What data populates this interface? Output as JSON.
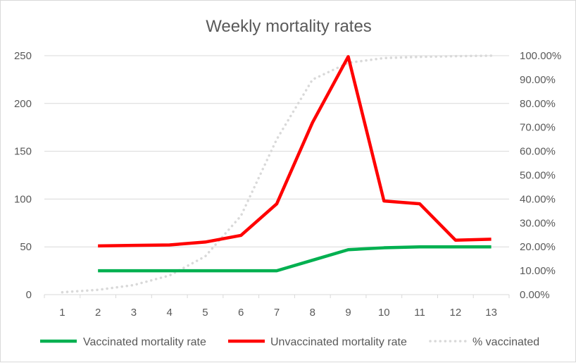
{
  "chart_data": {
    "type": "line",
    "title": "Weekly mortality rates",
    "xlabel": "",
    "ylabel": "",
    "categories": [
      "1",
      "2",
      "3",
      "4",
      "5",
      "6",
      "7",
      "8",
      "9",
      "10",
      "11",
      "12",
      "13"
    ],
    "ylim": [
      0,
      250
    ],
    "y_ticks": [
      "0",
      "50",
      "100",
      "150",
      "200",
      "250"
    ],
    "y2lim": [
      0,
      1
    ],
    "y2_ticks": [
      "0.00%",
      "10.00%",
      "20.00%",
      "30.00%",
      "40.00%",
      "50.00%",
      "60.00%",
      "70.00%",
      "80.00%",
      "90.00%",
      "100.00%"
    ],
    "grid": true,
    "legend_position": "bottom",
    "series": [
      {
        "name": "Vaccinated mortality rate",
        "axis": "primary",
        "color": "#00b050",
        "style": "solid",
        "values": [
          null,
          25,
          25,
          25,
          25,
          25,
          25,
          36,
          47,
          49,
          50,
          50,
          50
        ]
      },
      {
        "name": "Unvaccinated mortality rate",
        "axis": "primary",
        "color": "#ff0000",
        "style": "solid",
        "values": [
          null,
          51,
          51.5,
          52,
          55,
          62,
          95,
          180,
          249,
          98,
          95,
          57,
          58
        ]
      },
      {
        "name": "% vaccinated",
        "axis": "secondary",
        "color": "#d9d9d9",
        "style": "dotted",
        "values": [
          0.01,
          0.02,
          0.04,
          0.08,
          0.16,
          0.33,
          0.65,
          0.9,
          0.97,
          0.99,
          0.995,
          0.998,
          1.0
        ]
      }
    ]
  }
}
